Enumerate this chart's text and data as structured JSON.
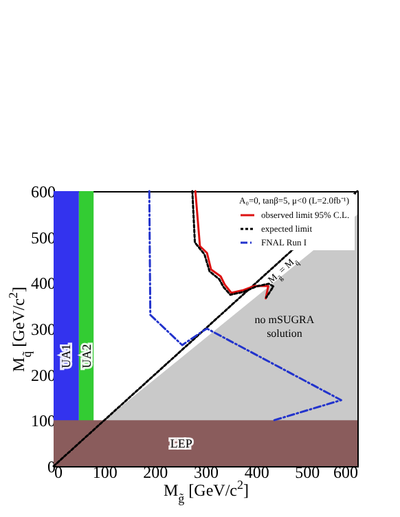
{
  "chart_data": {
    "type": "line",
    "xlabel": "M$_{g̃}$  [GeV/c$^{2}$]",
    "ylabel": "M$_{q̃}$  [GeV/c$^{2}$]",
    "legend_title": "A₀=0, tanβ=5, μ<0  (L=2.0fb⁻¹)",
    "legend": "top right",
    "grid": false,
    "xlim": [
      0,
      600
    ],
    "ylim": [
      0,
      600
    ],
    "xticks": [
      0,
      100,
      200,
      300,
      400,
      500,
      600
    ],
    "yticks": [
      0,
      100,
      200,
      300,
      400,
      500,
      600
    ],
    "series": [
      {
        "type": "area",
        "color": "#bbbbbb",
        "x": [
          100,
          600
        ],
        "values": [
          100,
          549
        ]
      },
      {
        "color": "#000000",
        "line_style": "dotted",
        "x": [
          0,
          600
        ],
        "values": [
          0,
          600
        ]
      },
      {
        "name": "observed limit 95% C.L.",
        "color": "#dd1111",
        "line_style": "solid",
        "x": [
          280,
          289,
          303,
          311,
          330,
          338,
          351,
          375,
          397,
          424,
          419
        ],
        "values": [
          600,
          480,
          465,
          429,
          414,
          396,
          378,
          384,
          393,
          393,
          366
        ]
      },
      {
        "name": "expected limit",
        "color": "#000000",
        "line_style": "dotted",
        "x": [
          274,
          279,
          298,
          308,
          327,
          336,
          349,
          375,
          400,
          425,
          434,
          420
        ],
        "values": [
          600,
          488,
          462,
          425,
          408,
          390,
          374,
          380,
          392,
          398,
          392,
          368
        ]
      },
      {
        "name": "FNAL Run I",
        "color": "#2233cc",
        "line_style": "dashed",
        "x": [
          189,
          191,
          254,
          294,
          303,
          568,
          432
        ],
        "values": [
          600,
          330,
          264,
          294,
          300,
          144,
          99
        ]
      }
    ],
    "bands": [
      {
        "axis": "x",
        "from": 0,
        "to": 50,
        "label": "UA1",
        "color": "#3333ee"
      },
      {
        "axis": "x",
        "from": 50,
        "to": 79,
        "label": "UA2",
        "color": "#33cc33"
      },
      {
        "axis": "y",
        "from": 0,
        "to": 100,
        "label": "LEP",
        "color": "#8a5c5c"
      }
    ],
    "annotations": [
      "no mSUGRA\nsolution",
      {
        "text": "M$_{g̃}$ = M$_{q̃}$",
        "x": 452,
        "y": 428
      }
    ]
  }
}
